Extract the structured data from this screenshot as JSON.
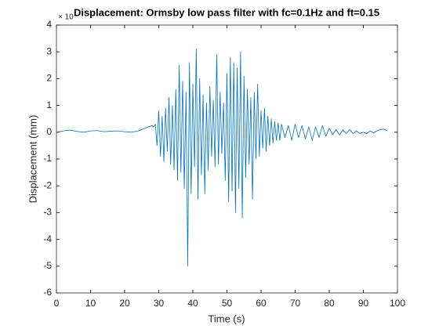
{
  "chart_data": {
    "type": "line",
    "title": "Displacement: Ormsby low pass filter with fc=0.1Hz and ft=0.15",
    "exponent_label": "× 10",
    "x_label": "Time (s)",
    "y_label": "Displacement (mm)",
    "xlim": [
      0,
      100
    ],
    "xticks": [
      0,
      10,
      20,
      30,
      40,
      50,
      60,
      70,
      80,
      90,
      100
    ],
    "ylim": [
      -6,
      4
    ],
    "yticks": [
      -6,
      -5,
      -4,
      -3,
      -2,
      -1,
      0,
      1,
      2,
      3,
      4
    ],
    "x": [
      0,
      2,
      4,
      6,
      8,
      10,
      12,
      14,
      16,
      18,
      20,
      22,
      24,
      26,
      28,
      28.5,
      29,
      29.5,
      30,
      30.5,
      31,
      31.5,
      32,
      32.5,
      33,
      33.5,
      34,
      34.5,
      35,
      35.5,
      36,
      36.5,
      37,
      37.5,
      38,
      38.5,
      39,
      39.5,
      40,
      40.5,
      41,
      41.5,
      42,
      42.5,
      43,
      43.5,
      44,
      44.5,
      45,
      45.5,
      46,
      46.5,
      47,
      47.5,
      48,
      48.5,
      49,
      49.5,
      50,
      50.5,
      51,
      51.5,
      52,
      52.5,
      53,
      53.5,
      54,
      54.5,
      55,
      55.5,
      56,
      56.5,
      57,
      57.5,
      58,
      58.5,
      59,
      59.5,
      60,
      60.5,
      61,
      61.5,
      62,
      62.5,
      63,
      63.5,
      64,
      64.5,
      65,
      65.5,
      66,
      67,
      68,
      69,
      70,
      71,
      72,
      73,
      74,
      75,
      76,
      77,
      78,
      79,
      80,
      81,
      82,
      83,
      84,
      85,
      86,
      87,
      88,
      89,
      90,
      91,
      92,
      93,
      94,
      95,
      96,
      97
    ],
    "series": [
      {
        "name": "Displacement",
        "color": "#0072bd",
        "values": [
          0,
          0.05,
          0.08,
          0.03,
          0,
          0.05,
          0.06,
          0.02,
          0.04,
          0.05,
          0.02,
          0,
          0.05,
          0.15,
          0.25,
          0.2,
          0.3,
          -0.5,
          0.8,
          -0.9,
          0.6,
          -1.1,
          0.9,
          -0.7,
          1.3,
          -1.2,
          1.0,
          -1.4,
          1.6,
          -1.8,
          2.5,
          -1.5,
          1.9,
          -2.1,
          1.5,
          -5.0,
          2.6,
          -2.3,
          1.8,
          -1.3,
          3.1,
          -2.5,
          2.0,
          -1.6,
          1.4,
          -2.3,
          1.1,
          -1.4,
          1.7,
          -0.9,
          1.2,
          -1.3,
          2.9,
          -1.2,
          1.5,
          -0.8,
          1.1,
          -1.8,
          2.2,
          -2.6,
          2.8,
          -2.2,
          2.6,
          -3.0,
          2.4,
          -2.1,
          3.0,
          -3.2,
          2.1,
          -1.7,
          1.6,
          -1.2,
          1.3,
          -2.5,
          1.5,
          -1.0,
          1.8,
          -0.9,
          0.8,
          -0.6,
          0.9,
          -0.7,
          0.6,
          -0.5,
          0.5,
          -0.4,
          0.4,
          -0.3,
          0.35,
          -0.3,
          0.3,
          -0.2,
          0.25,
          -0.3,
          0.3,
          -0.2,
          0.25,
          -0.25,
          0.2,
          -0.3,
          0.2,
          -0.2,
          0.25,
          -0.15,
          0.15,
          -0.1,
          0.1,
          -0.1,
          0.08,
          -0.05,
          0.1,
          -0.05,
          0.05,
          -0.05,
          0,
          -0.05,
          0.05,
          -0.02,
          0.05,
          0.1,
          0.12,
          0.05
        ]
      }
    ]
  }
}
